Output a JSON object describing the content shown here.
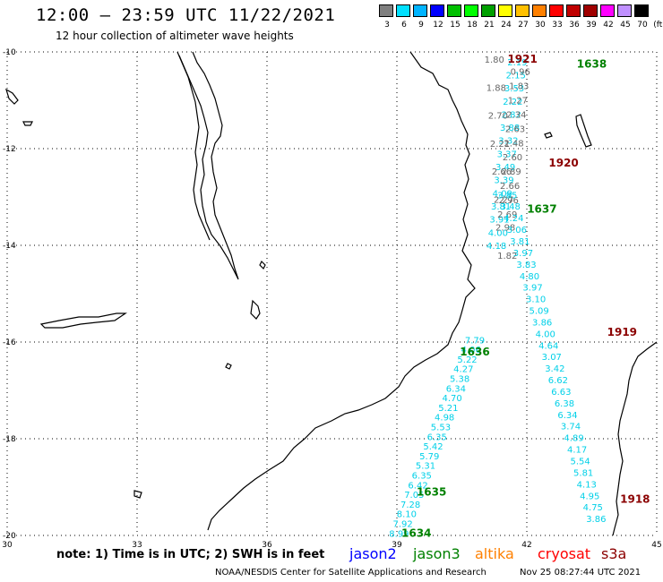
{
  "title": "12:00 – 23:59 UTC 11/22/2021",
  "subtitle": "12 hour collection of altimeter wave heights",
  "legend": {
    "unit": "(ft)",
    "bins": [
      {
        "label": "3",
        "color": "#7f7f7f"
      },
      {
        "label": "6",
        "color": "#00e0ff"
      },
      {
        "label": "9",
        "color": "#00b4ff"
      },
      {
        "label": "12",
        "color": "#0000ff"
      },
      {
        "label": "15",
        "color": "#00c000"
      },
      {
        "label": "18",
        "color": "#00ff00"
      },
      {
        "label": "21",
        "color": "#00a000"
      },
      {
        "label": "24",
        "color": "#ffff00"
      },
      {
        "label": "27",
        "color": "#ffc000"
      },
      {
        "label": "30",
        "color": "#ff8000"
      },
      {
        "label": "33",
        "color": "#ff0000"
      },
      {
        "label": "36",
        "color": "#c00000"
      },
      {
        "label": "39",
        "color": "#a00000"
      },
      {
        "label": "42",
        "color": "#ff00ff"
      },
      {
        "label": "45",
        "color": "#c090ff"
      },
      {
        "label": "70",
        "color": "#000000"
      }
    ]
  },
  "axes": {
    "lat_labels": [
      "-10",
      "-12",
      "-14",
      "-16",
      "-18",
      "-20"
    ],
    "lon_labels": [
      "30",
      "33",
      "36",
      "39",
      "42",
      "45"
    ]
  },
  "colors": {
    "jason2": "#0000ff",
    "jason3": "#008000",
    "altika": "#ff8000",
    "cryosat": "#ff0000",
    "s3a": "#8b0000",
    "cyan": "#00d0e8",
    "gray": "#666666"
  },
  "passes": [
    {
      "label": "1921",
      "sat": "s3a",
      "lon": 41.9,
      "lat": -10.15
    },
    {
      "label": "1638",
      "sat": "jason3",
      "lon": 43.5,
      "lat": -10.25
    },
    {
      "label": "1920",
      "sat": "s3a",
      "lon": 42.85,
      "lat": -12.3
    },
    {
      "label": "1637",
      "sat": "jason3",
      "lon": 42.35,
      "lat": -13.25
    },
    {
      "label": "1919",
      "sat": "s3a",
      "lon": 44.2,
      "lat": -15.8
    },
    {
      "label": "1636",
      "sat": "jason3",
      "lon": 40.8,
      "lat": -16.2
    },
    {
      "label": "1635",
      "sat": "jason3",
      "lon": 39.8,
      "lat": -19.1
    },
    {
      "label": "1918",
      "sat": "s3a",
      "lon": 44.5,
      "lat": -19.25
    },
    {
      "label": "1634",
      "sat": "jason3",
      "lon": 39.45,
      "lat": -19.95
    }
  ],
  "tracks": [
    {
      "color": "cyan",
      "lon_start": 41.78,
      "lat_start": -10.2,
      "lon_end": 41.3,
      "lat_end": -14.0,
      "values": [
        "2.19",
        "2.15",
        "3.53",
        "2.22",
        "2.82",
        "3.88",
        "3.32",
        "3.37",
        "3.49",
        "3.39",
        "4.09",
        "3.81",
        "3.91",
        "4.00",
        "4.18"
      ]
    },
    {
      "color": "gray",
      "lon_start": 41.25,
      "lat_start": -10.15,
      "lon_end": 41.55,
      "lat_end": -14.2,
      "values": [
        "1.80",
        "1.88",
        "2.70",
        "2.21",
        "2.66",
        "2.27",
        "2.98",
        "1.82"
      ]
    },
    {
      "color": "gray",
      "lon_start": 41.85,
      "lat_start": -10.4,
      "lon_end": 41.55,
      "lat_end": -13.35,
      "values": [
        "0.96",
        "1.83",
        "1.27",
        "2.34",
        "2.63",
        "2.48",
        "2.60",
        "2.89",
        "2.66",
        "2.96",
        "2.69"
      ]
    },
    {
      "color": "cyan",
      "lon_start": 41.55,
      "lat_start": -12.95,
      "lon_end": 43.6,
      "lat_end": -19.65,
      "values": [
        "3.85",
        "3.48",
        "4.24",
        "3.06",
        "3.81",
        "3.97",
        "3.83",
        "4.80",
        "3.97",
        "3.10",
        "5.09",
        "3.86",
        "4.00",
        "4.64",
        "3.07",
        "3.42",
        "6.62",
        "6.63",
        "6.38",
        "6.34",
        "3.74",
        "4.89",
        "4.17",
        "5.54",
        "5.81",
        "4.13",
        "4.95",
        "4.75",
        "3.86"
      ]
    },
    {
      "color": "cyan",
      "lon_start": 40.8,
      "lat_start": -15.95,
      "lon_end": 39.05,
      "lat_end": -19.95,
      "values": [
        "7.79",
        "4.06",
        "5.22",
        "4.27",
        "5.38",
        "6.34",
        "4.70",
        "5.21",
        "4.98",
        "5.53",
        "6.35",
        "5.42",
        "5.79",
        "5.31",
        "6.35",
        "6.42",
        "7.05",
        "7.28",
        "8.10",
        "7.92",
        "8.99"
      ]
    }
  ],
  "note": "note:  1) Time is in UTC;  2) SWH is in feet",
  "satellites": [
    {
      "name": "jason2",
      "color": "#0000ff"
    },
    {
      "name": "jason3",
      "color": "#008000"
    },
    {
      "name": "altika",
      "color": "#ff8000"
    },
    {
      "name": "cryosat",
      "color": "#ff0000"
    },
    {
      "name": "s3a",
      "color": "#8b0000"
    }
  ],
  "footer_left": "NOAA/NESDIS Center for Satellite Applications and Research",
  "footer_right": "Nov 25 08:27:44 UTC 2021"
}
